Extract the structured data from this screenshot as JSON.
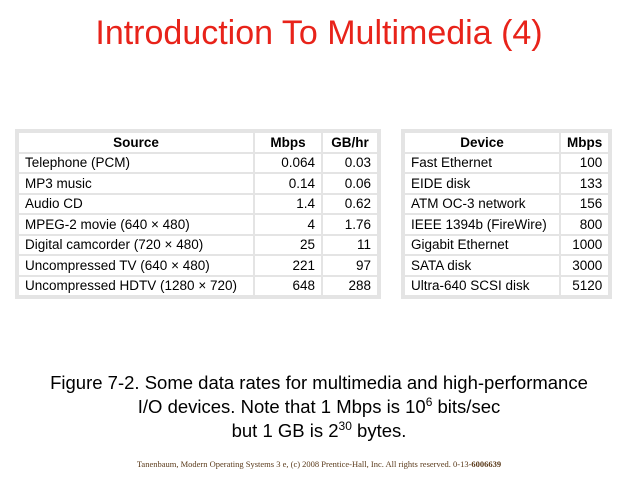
{
  "title": "Introduction To Multimedia (4)",
  "left_table": {
    "headers": [
      "Source",
      "Mbps",
      "GB/hr"
    ],
    "rows": [
      [
        "Telephone (PCM)",
        "0.064",
        "0.03"
      ],
      [
        "MP3 music",
        "0.14",
        "0.06"
      ],
      [
        "Audio CD",
        "1.4",
        "0.62"
      ],
      [
        "MPEG-2 movie (640 × 480)",
        "4",
        "1.76"
      ],
      [
        "Digital camcorder (720 × 480)",
        "25",
        "11"
      ],
      [
        "Uncompressed TV (640 × 480)",
        "221",
        "97"
      ],
      [
        "Uncompressed HDTV (1280 × 720)",
        "648",
        "288"
      ]
    ]
  },
  "right_table": {
    "headers": [
      "Device",
      "Mbps"
    ],
    "rows": [
      [
        "Fast Ethernet",
        "100"
      ],
      [
        "EIDE disk",
        "133"
      ],
      [
        "ATM OC-3 network",
        "156"
      ],
      [
        "IEEE 1394b (FireWire)",
        "800"
      ],
      [
        "Gigabit Ethernet",
        "1000"
      ],
      [
        "SATA disk",
        "3000"
      ],
      [
        "Ultra-640 SCSI disk",
        "5120"
      ]
    ]
  },
  "caption": {
    "line1": "Figure 7-2. Some data rates for multimedia and high-performance",
    "line2_pre": "I/O devices. Note that 1 Mbps is 10",
    "line2_sup": "6",
    "line2_post": " bits/sec",
    "line3_pre": "but 1 GB is 2",
    "line3_sup": "30",
    "line3_post": " bytes."
  },
  "footer": {
    "text": "Tanenbaum, Modern Operating Systems 3 e, (c) 2008 Prentice-Hall, Inc. All rights reserved. 0-13-",
    "isbn_bold": "6006639"
  }
}
